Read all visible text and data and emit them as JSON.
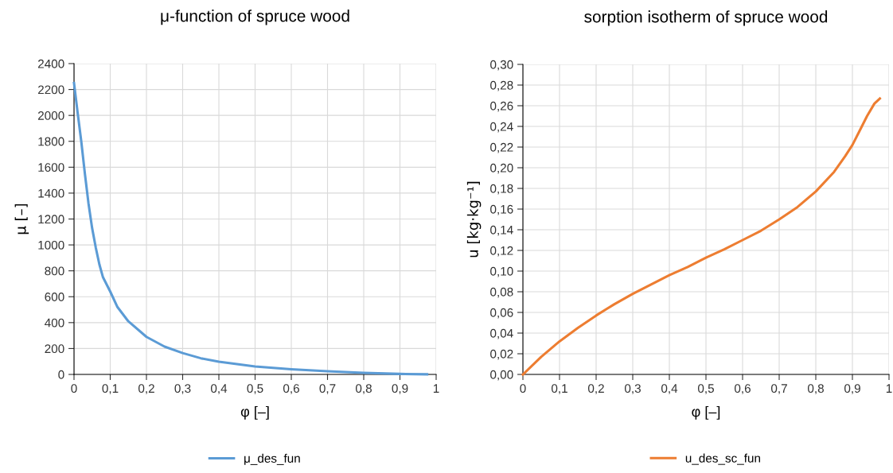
{
  "chart_data": [
    {
      "type": "line",
      "title": "μ-function of spruce wood",
      "xlabel": "φ [–]",
      "ylabel": "μ [–]",
      "grid": true,
      "legend": "bottom",
      "marker": "none",
      "line_style": "solid",
      "x": [
        0,
        0.01,
        0.02,
        0.03,
        0.04,
        0.05,
        0.06,
        0.07,
        0.08,
        0.1,
        0.12,
        0.15,
        0.2,
        0.25,
        0.3,
        0.35,
        0.4,
        0.5,
        0.6,
        0.7,
        0.8,
        0.9,
        0.975
      ],
      "series": [
        {
          "name": "μ_des_fun",
          "color": "#5b9bd5",
          "values": [
            2250,
            2020,
            1800,
            1550,
            1320,
            1130,
            980,
            850,
            750,
            640,
            520,
            410,
            290,
            215,
            165,
            125,
            98,
            62,
            40,
            24,
            12,
            4,
            1
          ]
        }
      ],
      "xlim": [
        0,
        1
      ],
      "xticks": [
        0,
        {
          "value": 0.1,
          "label": "0,1"
        },
        {
          "value": 0.2,
          "label": "0,2"
        },
        {
          "value": 0.3,
          "label": "0,3"
        },
        {
          "value": 0.4,
          "label": "0,4"
        },
        {
          "value": 0.5,
          "label": "0,5"
        },
        {
          "value": 0.6,
          "label": "0,6"
        },
        {
          "value": 0.7,
          "label": "0,7"
        },
        {
          "value": 0.8,
          "label": "0,8"
        },
        {
          "value": 0.9,
          "label": "0,9"
        },
        1
      ],
      "ylim": [
        0,
        2400
      ],
      "yticks": [
        0,
        200,
        400,
        600,
        800,
        1000,
        1200,
        1400,
        1600,
        1800,
        2000,
        2200,
        2400
      ]
    },
    {
      "type": "line",
      "title": "sorption isotherm of spruce wood",
      "xlabel": "φ [–]",
      "ylabel": "u [kg·kg⁻¹]",
      "grid": true,
      "legend": "bottom",
      "marker": "none",
      "line_style": "solid",
      "x": [
        0,
        0.05,
        0.1,
        0.15,
        0.2,
        0.25,
        0.3,
        0.35,
        0.4,
        0.45,
        0.5,
        0.55,
        0.6,
        0.65,
        0.7,
        0.75,
        0.8,
        0.85,
        0.88,
        0.9,
        0.92,
        0.94,
        0.96,
        0.975
      ],
      "series": [
        {
          "name": "u_des_sc_fun",
          "color": "#ed7d31",
          "values": [
            0,
            0.017,
            0.032,
            0.045,
            0.057,
            0.068,
            0.078,
            0.087,
            0.096,
            0.104,
            0.113,
            0.121,
            0.13,
            0.139,
            0.15,
            0.162,
            0.177,
            0.196,
            0.211,
            0.222,
            0.236,
            0.25,
            0.262,
            0.267
          ]
        }
      ],
      "xlim": [
        0,
        1
      ],
      "xticks": [
        0,
        {
          "value": 0.1,
          "label": "0,1"
        },
        {
          "value": 0.2,
          "label": "0,2"
        },
        {
          "value": 0.3,
          "label": "0,3"
        },
        {
          "value": 0.4,
          "label": "0,4"
        },
        {
          "value": 0.5,
          "label": "0,5"
        },
        {
          "value": 0.6,
          "label": "0,6"
        },
        {
          "value": 0.7,
          "label": "0,7"
        },
        {
          "value": 0.8,
          "label": "0,8"
        },
        {
          "value": 0.9,
          "label": "0,9"
        },
        1
      ],
      "ylim": [
        0,
        0.3
      ],
      "yticks": [
        {
          "value": 0,
          "label": "0,00"
        },
        {
          "value": 0.02,
          "label": "0,02"
        },
        {
          "value": 0.04,
          "label": "0,04"
        },
        {
          "value": 0.06,
          "label": "0,06"
        },
        {
          "value": 0.08,
          "label": "0,08"
        },
        {
          "value": 0.1,
          "label": "0,10"
        },
        {
          "value": 0.12,
          "label": "0,12"
        },
        {
          "value": 0.14,
          "label": "0,14"
        },
        {
          "value": 0.16,
          "label": "0,16"
        },
        {
          "value": 0.18,
          "label": "0,18"
        },
        {
          "value": 0.2,
          "label": "0,20"
        },
        {
          "value": 0.22,
          "label": "0,22"
        },
        {
          "value": 0.24,
          "label": "0,24"
        },
        {
          "value": 0.26,
          "label": "0,26"
        },
        {
          "value": 0.28,
          "label": "0,28"
        },
        {
          "value": 0.3,
          "label": "0,30"
        }
      ]
    }
  ]
}
